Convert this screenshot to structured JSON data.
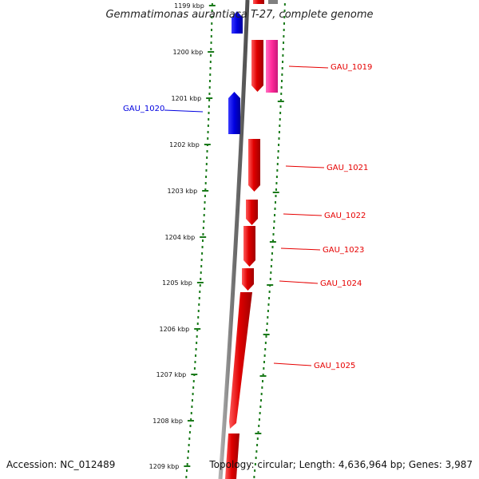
{
  "title": "Gemmatimonas aurantiaca T-27, complete genome",
  "footer": {
    "accession": "Accession: NC_012489",
    "summary": "Topology: circular; Length: 4,636,964 bp; Genes: 3,987"
  },
  "ruler": {
    "tick_labels": [
      "1199 kbp",
      "1200 kbp",
      "1201 kbp",
      "1202 kbp",
      "1203 kbp",
      "1204 kbp",
      "1205 kbp",
      "1206 kbp",
      "1207 kbp",
      "1208 kbp",
      "1209 kbp"
    ]
  },
  "genes": [
    {
      "id": "GAU_1019",
      "strand": "forward",
      "color": "#e60000"
    },
    {
      "id": "GAU_1020",
      "strand": "reverse",
      "color": "#0000e0"
    },
    {
      "id": "GAU_1021",
      "strand": "forward",
      "color": "#e60000"
    },
    {
      "id": "GAU_1022",
      "strand": "forward",
      "color": "#e60000"
    },
    {
      "id": "GAU_1023",
      "strand": "forward",
      "color": "#e60000"
    },
    {
      "id": "GAU_1024",
      "strand": "forward",
      "color": "#e60000"
    },
    {
      "id": "GAU_1025",
      "strand": "forward",
      "color": "#e60000"
    }
  ],
  "colors": {
    "forward_gene": "#e60000",
    "reverse_gene": "#0000e0",
    "feature": "#ff2a9a",
    "backbone": "#808080",
    "ruler": "#1a7a1a"
  }
}
